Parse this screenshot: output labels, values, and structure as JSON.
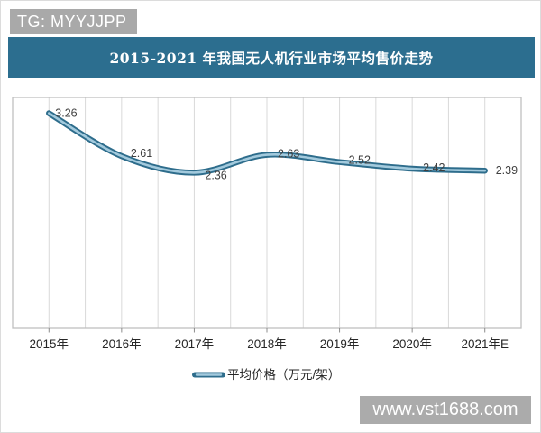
{
  "watermarks": {
    "top_left": "TG: MYYJJPP",
    "bottom_right": "www.vst1688.com"
  },
  "header": {
    "title": "2015-2021 年我国无人机行业市场平均售价走势"
  },
  "colors": {
    "header_bg": "#2c6e8f",
    "line_dark": "#2e6d8c",
    "line_light": "#a3cadd",
    "badge_gray": "#a9a9a9",
    "plot_border": "#bfbfbf",
    "gridline": "#d9d9d9",
    "tick": "#8c8c8c",
    "data_label": "#3f3f3f",
    "axis_label": "#262626"
  },
  "chart_data": {
    "type": "line",
    "title": "2015-2021 年我国无人机行业市场平均售价走势",
    "categories": [
      "2015年",
      "2016年",
      "2017年",
      "2018年",
      "2019年",
      "2020年",
      "2021年E"
    ],
    "series": [
      {
        "name": "平均价格（万元/架）",
        "values": [
          3.26,
          2.61,
          2.36,
          2.63,
          2.52,
          2.42,
          2.39
        ]
      }
    ],
    "xlabel": "",
    "ylabel": "",
    "ylim": [
      0,
      3.5
    ],
    "grid": "vertical only, one line per half-year step, no horizontal gridlines, no y-axis labels",
    "data_labels": true,
    "legend_position": "bottom-center",
    "line_style": "smooth thick tube (dark teal outline, light blue core)"
  }
}
